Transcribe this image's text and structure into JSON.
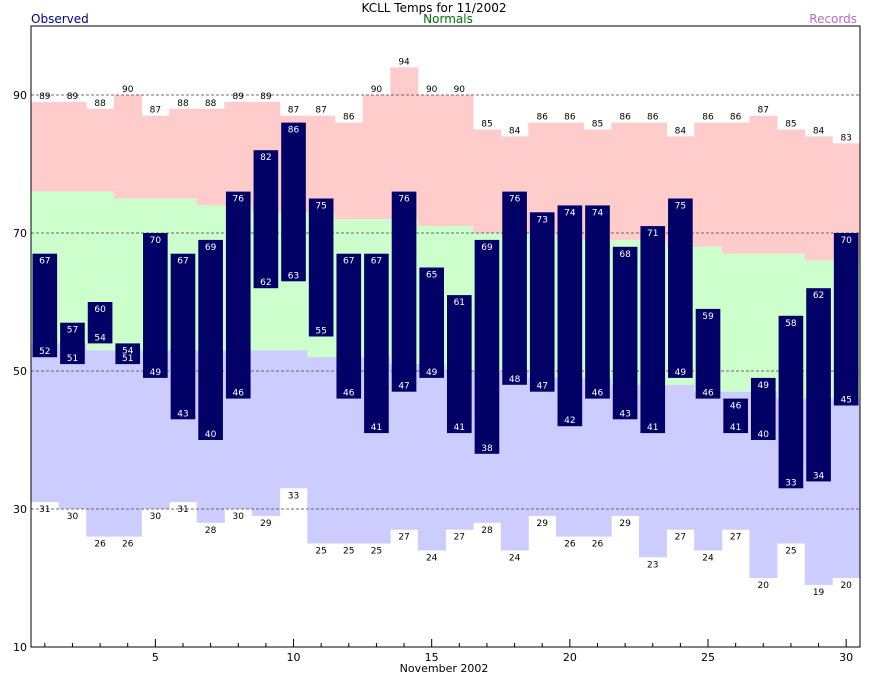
{
  "chart_data": {
    "type": "bar",
    "title": "KCLL Temps for 11/2002",
    "xlabel": "November 2002",
    "legend": {
      "observed": "Observed",
      "normals": "Normals",
      "records": "Records"
    },
    "colors": {
      "observed": "#000066",
      "observed_label": "#000080",
      "normals": "#ccffcc",
      "normals_label": "#007000",
      "records": "#ffcccc",
      "records_low": "#ccccff",
      "records_label": "#b070c0",
      "grid": "#444444"
    },
    "ylim": [
      10,
      100
    ],
    "xlim": [
      0.5,
      30.5
    ],
    "y_ticks": [
      10,
      30,
      50,
      70,
      90
    ],
    "x_ticks": [
      5,
      10,
      15,
      20,
      25,
      30
    ],
    "days": [
      1,
      2,
      3,
      4,
      5,
      6,
      7,
      8,
      9,
      10,
      11,
      12,
      13,
      14,
      15,
      16,
      17,
      18,
      19,
      20,
      21,
      22,
      23,
      24,
      25,
      26,
      27,
      28,
      29,
      30
    ],
    "observed_high": [
      67,
      57,
      60,
      54,
      70,
      67,
      69,
      76,
      82,
      86,
      75,
      67,
      67,
      76,
      65,
      61,
      69,
      76,
      73,
      74,
      74,
      68,
      71,
      75,
      59,
      46,
      49,
      58,
      62,
      70
    ],
    "observed_low": [
      52,
      51,
      54,
      51,
      49,
      43,
      40,
      46,
      62,
      63,
      55,
      46,
      41,
      47,
      49,
      41,
      38,
      48,
      47,
      42,
      46,
      43,
      41,
      49,
      46,
      41,
      40,
      33,
      34,
      45
    ],
    "normal_high": [
      76,
      76,
      76,
      75,
      75,
      75,
      74,
      74,
      73,
      73,
      73,
      72,
      72,
      72,
      71,
      71,
      70,
      70,
      70,
      69,
      69,
      69,
      69,
      68,
      68,
      67,
      67,
      67,
      66,
      66
    ],
    "normal_low": [
      54,
      54,
      53,
      53,
      53,
      53,
      53,
      53,
      53,
      53,
      52,
      52,
      52,
      51,
      51,
      50,
      50,
      50,
      49,
      49,
      49,
      48,
      48,
      48,
      47,
      47,
      47,
      46,
      46,
      46
    ],
    "record_high": [
      89,
      89,
      88,
      90,
      87,
      88,
      88,
      89,
      89,
      87,
      87,
      86,
      90,
      94,
      90,
      90,
      85,
      84,
      86,
      86,
      85,
      86,
      86,
      84,
      86,
      86,
      87,
      85,
      84,
      83
    ],
    "record_low": [
      31,
      30,
      26,
      26,
      30,
      31,
      28,
      30,
      29,
      33,
      25,
      25,
      25,
      27,
      24,
      27,
      28,
      24,
      29,
      26,
      26,
      29,
      23,
      27,
      24,
      27,
      20,
      25,
      19,
      20
    ]
  }
}
